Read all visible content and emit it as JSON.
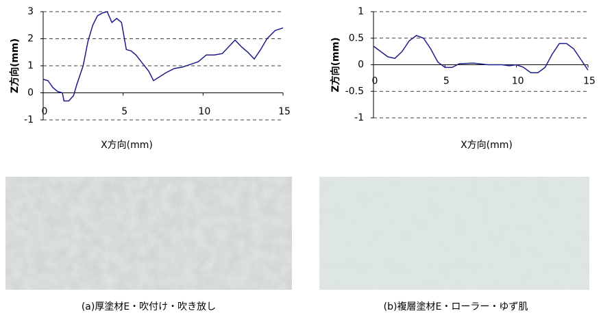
{
  "chart_data": [
    {
      "type": "line",
      "ylabel": "Z方向(mm)",
      "xlabel": "X方向(mm)",
      "xlim": [
        0,
        15
      ],
      "ylim": [
        -1,
        3
      ],
      "xticks": [
        0,
        5,
        10,
        15
      ],
      "yticks": [
        -1,
        0,
        1,
        2,
        3
      ],
      "grid": true,
      "series": [
        {
          "color": "#1a1a8c",
          "x": [
            0,
            0.3,
            0.6,
            0.9,
            1.2,
            1.3,
            1.6,
            1.9,
            2.1,
            2.5,
            2.8,
            3.1,
            3.4,
            3.7,
            4.0,
            4.3,
            4.6,
            4.9,
            5.2,
            5.5,
            5.8,
            6.2,
            6.6,
            6.9,
            7.3,
            7.7,
            8.2,
            8.7,
            9.2,
            9.7,
            10.2,
            10.7,
            11.2,
            11.6,
            12.0,
            12.4,
            12.8,
            13.2,
            13.6,
            14.0,
            14.5,
            15
          ],
          "values": [
            0.5,
            0.45,
            0.2,
            0.05,
            0.0,
            -0.3,
            -0.3,
            -0.1,
            0.3,
            1.0,
            1.9,
            2.5,
            2.85,
            2.95,
            3.0,
            2.6,
            2.75,
            2.6,
            1.6,
            1.55,
            1.4,
            1.1,
            0.8,
            0.45,
            0.6,
            0.75,
            0.9,
            0.95,
            1.05,
            1.15,
            1.4,
            1.4,
            1.45,
            1.7,
            1.95,
            1.7,
            1.5,
            1.25,
            1.6,
            2.0,
            2.3,
            2.4
          ]
        }
      ]
    },
    {
      "type": "line",
      "ylabel": "Z方向(mm)",
      "xlabel": "X方向(mm)",
      "xlim": [
        0,
        15
      ],
      "ylim": [
        -1,
        1
      ],
      "xticks": [
        0,
        5,
        10,
        15
      ],
      "yticks": [
        -1,
        -0.5,
        0,
        0.5,
        1
      ],
      "grid": true,
      "series": [
        {
          "color": "#1a1a8c",
          "x": [
            0,
            0.5,
            1,
            1.5,
            2,
            2.5,
            3,
            3.5,
            4,
            4.5,
            5,
            5.5,
            6,
            7,
            8,
            9,
            9.5,
            10,
            10.5,
            11,
            11.5,
            12,
            12.5,
            13,
            13.5,
            14,
            14.5,
            15
          ],
          "values": [
            0.35,
            0.25,
            0.15,
            0.12,
            0.25,
            0.45,
            0.55,
            0.5,
            0.3,
            0.05,
            -0.05,
            -0.05,
            0.02,
            0.03,
            0.0,
            0.0,
            -0.02,
            0.0,
            -0.05,
            -0.15,
            -0.15,
            -0.05,
            0.2,
            0.4,
            0.4,
            0.3,
            0.1,
            -0.1
          ]
        }
      ]
    }
  ],
  "captions": [
    "(a)厚塗材E・吹付け・吹き放し",
    "(b)複層塗材E・ローラー・ゆず肌"
  ]
}
